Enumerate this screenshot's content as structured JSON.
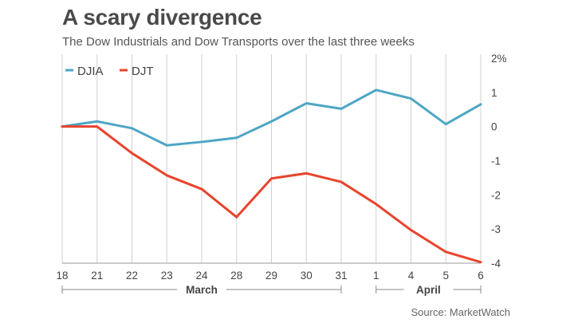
{
  "chart_data": {
    "type": "line",
    "title": "A scary divergence",
    "subtitle": "The Dow Industrials and Dow Transports over the last three weeks",
    "source": "Source: MarketWatch",
    "categories": [
      "18",
      "21",
      "22",
      "23",
      "24",
      "28",
      "29",
      "30",
      "31",
      "1",
      "4",
      "5",
      "6"
    ],
    "month_labels": [
      {
        "label": "March",
        "from": "18",
        "to": "31"
      },
      {
        "label": "April",
        "from": "1",
        "to": "6"
      }
    ],
    "y_ticks": [
      "2%",
      "1",
      "0",
      "-1",
      "-2",
      "-3",
      "-4"
    ],
    "y_tick_values": [
      2,
      1,
      0,
      -1,
      -2,
      -3,
      -4
    ],
    "ylim": [
      -4,
      2
    ],
    "y_axis_side": "right",
    "grid": "vertical",
    "legend_position": "top-left",
    "series": [
      {
        "name": "DJIA",
        "color": "#4ea6c4",
        "values": [
          0.0,
          0.15,
          -0.05,
          -0.55,
          -0.45,
          -0.33,
          0.15,
          0.68,
          0.52,
          1.07,
          0.82,
          0.07,
          0.65
        ]
      },
      {
        "name": "DJT",
        "color": "#e8442c",
        "values": [
          0.0,
          0.0,
          -0.78,
          -1.43,
          -1.83,
          -2.65,
          -1.52,
          -1.37,
          -1.62,
          -2.27,
          -3.03,
          -3.67,
          -3.97
        ]
      }
    ]
  }
}
